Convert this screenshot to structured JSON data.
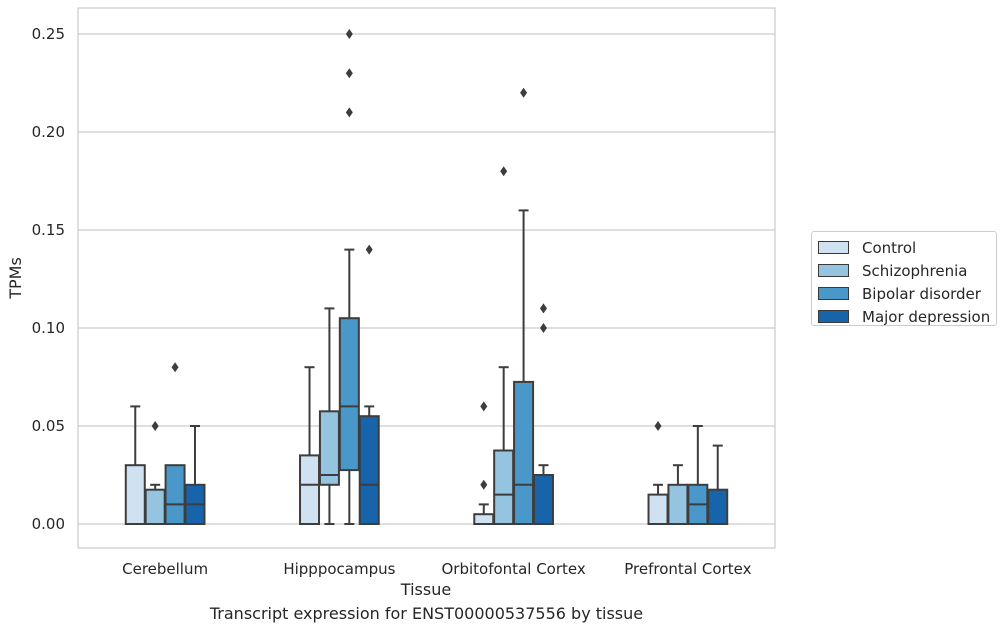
{
  "chart_data": {
    "type": "box",
    "xlabel": "Tissue",
    "ylabel": "TPMs",
    "caption": "Transcript expression for ENST00000537556 by tissue",
    "categories": [
      "Cerebellum",
      "Hipppocampus",
      "Orbitofontal Cortex",
      "Prefrontal Cortex"
    ],
    "ylim": [
      -0.012,
      0.262
    ],
    "yticks": [
      "0.00",
      "0.05",
      "0.10",
      "0.15",
      "0.20",
      "0.25"
    ],
    "grid": true,
    "legend_position": "right",
    "series": [
      {
        "name": "Control",
        "color": "#d0e1f2",
        "boxes": [
          {
            "min": 0.0,
            "q1": 0.0,
            "median": 0.0,
            "q3": 0.03,
            "max": 0.06,
            "outliers": []
          },
          {
            "min": 0.0,
            "q1": 0.0,
            "median": 0.02,
            "q3": 0.035,
            "max": 0.08,
            "outliers": []
          },
          {
            "min": 0.0,
            "q1": 0.0,
            "median": 0.0,
            "q3": 0.005,
            "max": 0.01,
            "outliers": [
              0.02,
              0.06
            ]
          },
          {
            "min": 0.0,
            "q1": 0.0,
            "median": 0.0,
            "q3": 0.015,
            "max": 0.02,
            "outliers": [
              0.05
            ]
          }
        ]
      },
      {
        "name": "Schizophrenia",
        "color": "#94c4df",
        "boxes": [
          {
            "min": 0.0,
            "q1": 0.0,
            "median": 0.0,
            "q3": 0.0175,
            "max": 0.02,
            "outliers": [
              0.05
            ]
          },
          {
            "min": 0.0,
            "q1": 0.02,
            "median": 0.025,
            "q3": 0.0575,
            "max": 0.11,
            "outliers": []
          },
          {
            "min": 0.0,
            "q1": 0.0,
            "median": 0.015,
            "q3": 0.0375,
            "max": 0.08,
            "outliers": [
              0.18
            ]
          },
          {
            "min": 0.0,
            "q1": 0.0,
            "median": 0.0,
            "q3": 0.02,
            "max": 0.03,
            "outliers": []
          }
        ]
      },
      {
        "name": "Bipolar disorder",
        "color": "#4a98c9",
        "boxes": [
          {
            "min": 0.0,
            "q1": 0.0,
            "median": 0.01,
            "q3": 0.03,
            "max": 0.03,
            "outliers": [
              0.08
            ]
          },
          {
            "min": 0.0,
            "q1": 0.0275,
            "median": 0.06,
            "q3": 0.105,
            "max": 0.14,
            "outliers": [
              0.21,
              0.23,
              0.25
            ]
          },
          {
            "min": 0.0,
            "q1": 0.0,
            "median": 0.02,
            "q3": 0.0725,
            "max": 0.16,
            "outliers": [
              0.22
            ]
          },
          {
            "min": 0.0,
            "q1": 0.0,
            "median": 0.01,
            "q3": 0.02,
            "max": 0.05,
            "outliers": []
          }
        ]
      },
      {
        "name": "Major depression",
        "color": "#1764ab",
        "boxes": [
          {
            "min": 0.0,
            "q1": 0.0,
            "median": 0.01,
            "q3": 0.02,
            "max": 0.05,
            "outliers": []
          },
          {
            "min": 0.0,
            "q1": 0.0,
            "median": 0.02,
            "q3": 0.055,
            "max": 0.06,
            "outliers": [
              0.14
            ]
          },
          {
            "min": 0.0,
            "q1": 0.0,
            "median": 0.0,
            "q3": 0.025,
            "max": 0.03,
            "outliers": [
              0.1,
              0.11
            ]
          },
          {
            "min": 0.0,
            "q1": 0.0,
            "median": 0.0,
            "q3": 0.0175,
            "max": 0.04,
            "outliers": []
          }
        ]
      }
    ]
  }
}
